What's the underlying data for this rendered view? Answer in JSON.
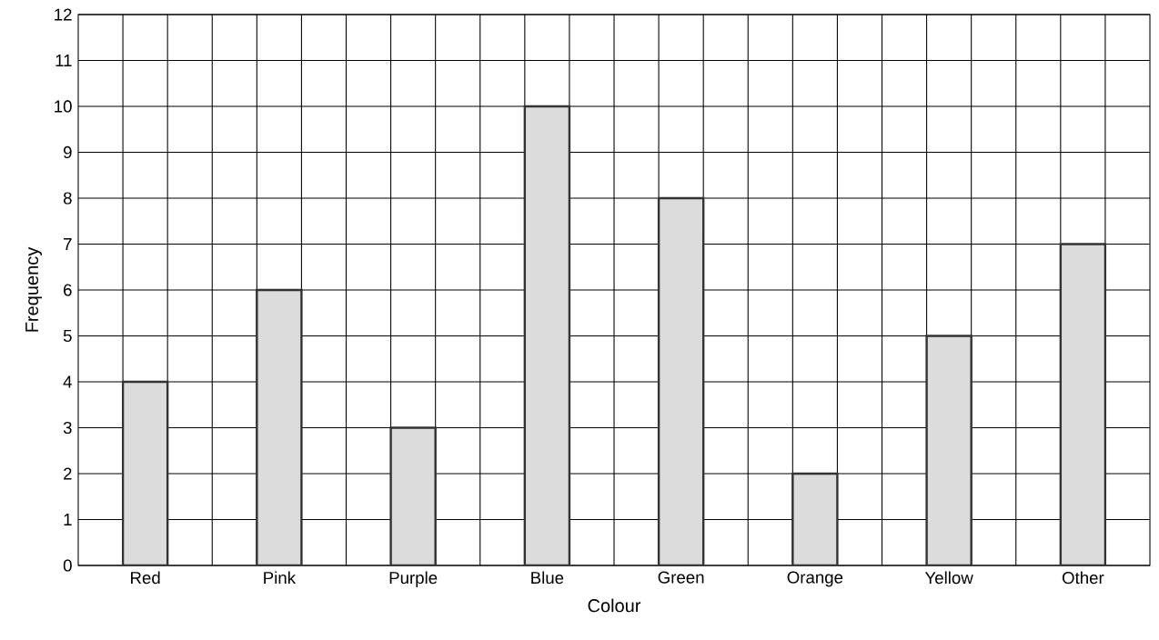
{
  "chart_data": {
    "type": "bar",
    "xlabel": "Colour",
    "ylabel": "Frequency",
    "categories": [
      "Red",
      "Pink",
      "Purple",
      "Blue",
      "Green",
      "Orange",
      "Yellow",
      "Other"
    ],
    "values": [
      4,
      6,
      3,
      10,
      8,
      2,
      5,
      7
    ],
    "color": "#dcdcdc",
    "ylim": [
      0,
      12
    ],
    "yticks": [
      0,
      1,
      2,
      3,
      4,
      5,
      6,
      7,
      8,
      9,
      10,
      11,
      12
    ],
    "grid": true
  }
}
